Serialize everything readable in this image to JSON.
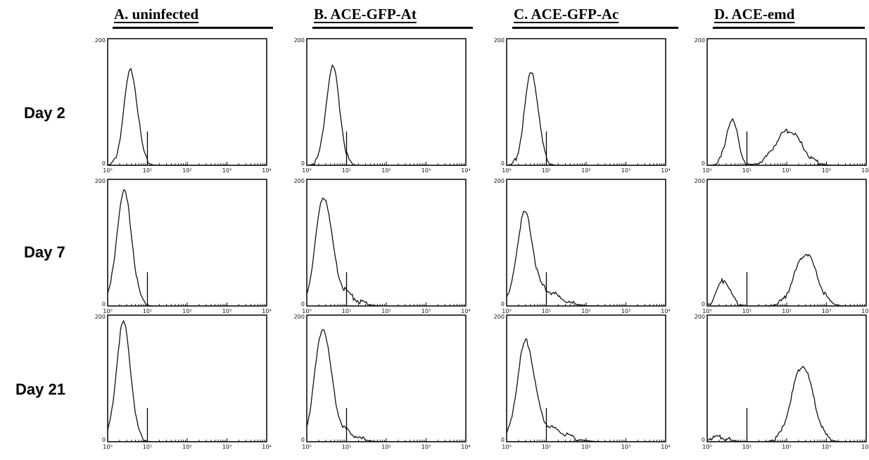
{
  "chart_data": {
    "type": "area",
    "columns": [
      {
        "label": "A.  uninfected"
      },
      {
        "label": "B.  ACE-GFP-At"
      },
      {
        "label": "C.  ACE-GFP-Ac"
      },
      {
        "label": "D.  ACE-emd"
      }
    ],
    "rows": [
      {
        "label": "Day 2"
      },
      {
        "label": "Day 7"
      },
      {
        "label": "Day 21"
      }
    ],
    "y_ticks": [
      "200",
      "0"
    ],
    "x_ticks": [
      "10⁰",
      "10¹",
      "10²",
      "10³",
      "10⁴"
    ],
    "xscale": "log",
    "xlim": [
      1,
      10000
    ],
    "ylim": [
      0,
      200
    ],
    "gate_x": 10,
    "panels": [
      [
        {
          "peaks": [
            {
              "x": 3.8,
              "height": 150,
              "width": 0.17
            }
          ]
        },
        {
          "peaks": [
            {
              "x": 4.5,
              "height": 155,
              "width": 0.17
            }
          ]
        },
        {
          "peaks": [
            {
              "x": 4.2,
              "height": 148,
              "width": 0.17
            }
          ]
        },
        {
          "peaks": [
            {
              "x": 4.2,
              "height": 72,
              "width": 0.15
            },
            {
              "x": 110,
              "height": 55,
              "width": 0.33
            }
          ]
        }
      ],
      [
        {
          "peaks": [
            {
              "x": 2.6,
              "height": 180,
              "width": 0.19
            }
          ]
        },
        {
          "peaks": [
            {
              "x": 2.6,
              "height": 158,
              "width": 0.2
            },
            {
              "x": 6,
              "height": 25,
              "width": 0.35
            }
          ]
        },
        {
          "peaks": [
            {
              "x": 2.8,
              "height": 135,
              "width": 0.19
            },
            {
              "x": 8,
              "height": 25,
              "width": 0.4
            }
          ]
        },
        {
          "peaks": [
            {
              "x": 2.6,
              "height": 40,
              "width": 0.17
            },
            {
              "x": 300,
              "height": 82,
              "width": 0.28
            }
          ]
        }
      ],
      [
        {
          "peaks": [
            {
              "x": 2.5,
              "height": 188,
              "width": 0.18
            }
          ]
        },
        {
          "peaks": [
            {
              "x": 2.5,
              "height": 168,
              "width": 0.2
            },
            {
              "x": 6,
              "height": 20,
              "width": 0.35
            }
          ]
        },
        {
          "peaks": [
            {
              "x": 3.0,
              "height": 148,
              "width": 0.21
            },
            {
              "x": 10,
              "height": 22,
              "width": 0.45
            }
          ]
        },
        {
          "peaks": [
            {
              "x": 1.8,
              "height": 7,
              "width": 0.25
            },
            {
              "x": 250,
              "height": 120,
              "width": 0.27
            }
          ]
        }
      ]
    ]
  }
}
